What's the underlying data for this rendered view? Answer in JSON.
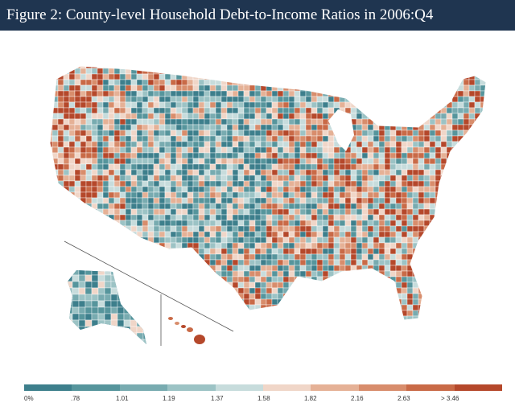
{
  "title": "Figure 2: County-level Household Debt-to-Income Ratios in 2006:Q4",
  "legend": {
    "labels": [
      "0%",
      ".78",
      "1.01",
      "1.19",
      "1.37",
      "1.58",
      "1.82",
      "2.16",
      "2.63",
      "> 3.46"
    ],
    "colors": [
      "#3d7f8c",
      "#56959c",
      "#78abb0",
      "#9cc3c5",
      "#c7dcdc",
      "#f0d6c8",
      "#e5b196",
      "#d88d6c",
      "#c96a47",
      "#b5482b"
    ]
  },
  "map": {
    "regions": [
      "contiguous-us",
      "alaska",
      "hawaii"
    ],
    "base_color": "#d9c0b0"
  }
}
